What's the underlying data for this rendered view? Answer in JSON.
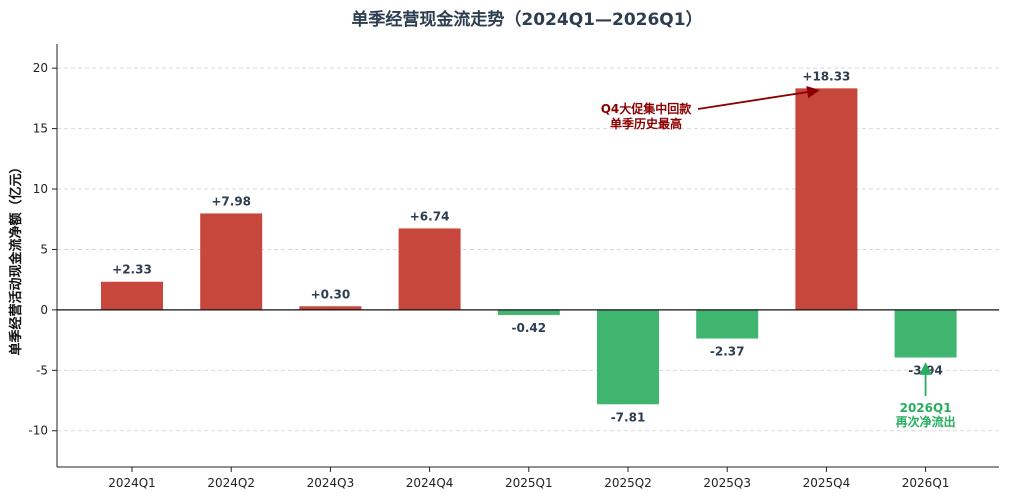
{
  "chart_data": {
    "type": "bar",
    "title": "单季经营现金流走势（2024Q1—2026Q1）",
    "ylabel": "单季经营活动现金流净额（亿元）",
    "xlabel": "",
    "categories": [
      "2024Q1",
      "2024Q2",
      "2024Q3",
      "2024Q4",
      "2025Q1",
      "2025Q2",
      "2025Q3",
      "2025Q4",
      "2026Q1"
    ],
    "values": [
      2.33,
      7.98,
      0.3,
      6.74,
      -0.42,
      -7.81,
      -2.37,
      18.33,
      -3.94
    ],
    "value_labels": [
      "+2.33",
      "+7.98",
      "+0.30",
      "+6.74",
      "-0.42",
      "-7.81",
      "-2.37",
      "+18.33",
      "-3.94"
    ],
    "ylim": [
      -13,
      22
    ],
    "yticks": [
      -10,
      -5,
      0,
      5,
      10,
      15,
      20
    ],
    "grid": true,
    "colors": {
      "positive": "#c8473d",
      "negative": "#3fb56f",
      "title": "#2c3e50",
      "annotation_high": "#8b0000",
      "annotation_low": "#27ae60"
    },
    "annotations": [
      {
        "category": "2025Q4",
        "value": 18.33,
        "lines": [
          "Q4大促集中回款",
          "单季历史最高"
        ],
        "color": "#8b0000"
      },
      {
        "category": "2026Q1",
        "value": -3.94,
        "lines": [
          "2026Q1",
          "再次净流出"
        ],
        "color": "#27ae60"
      }
    ]
  }
}
